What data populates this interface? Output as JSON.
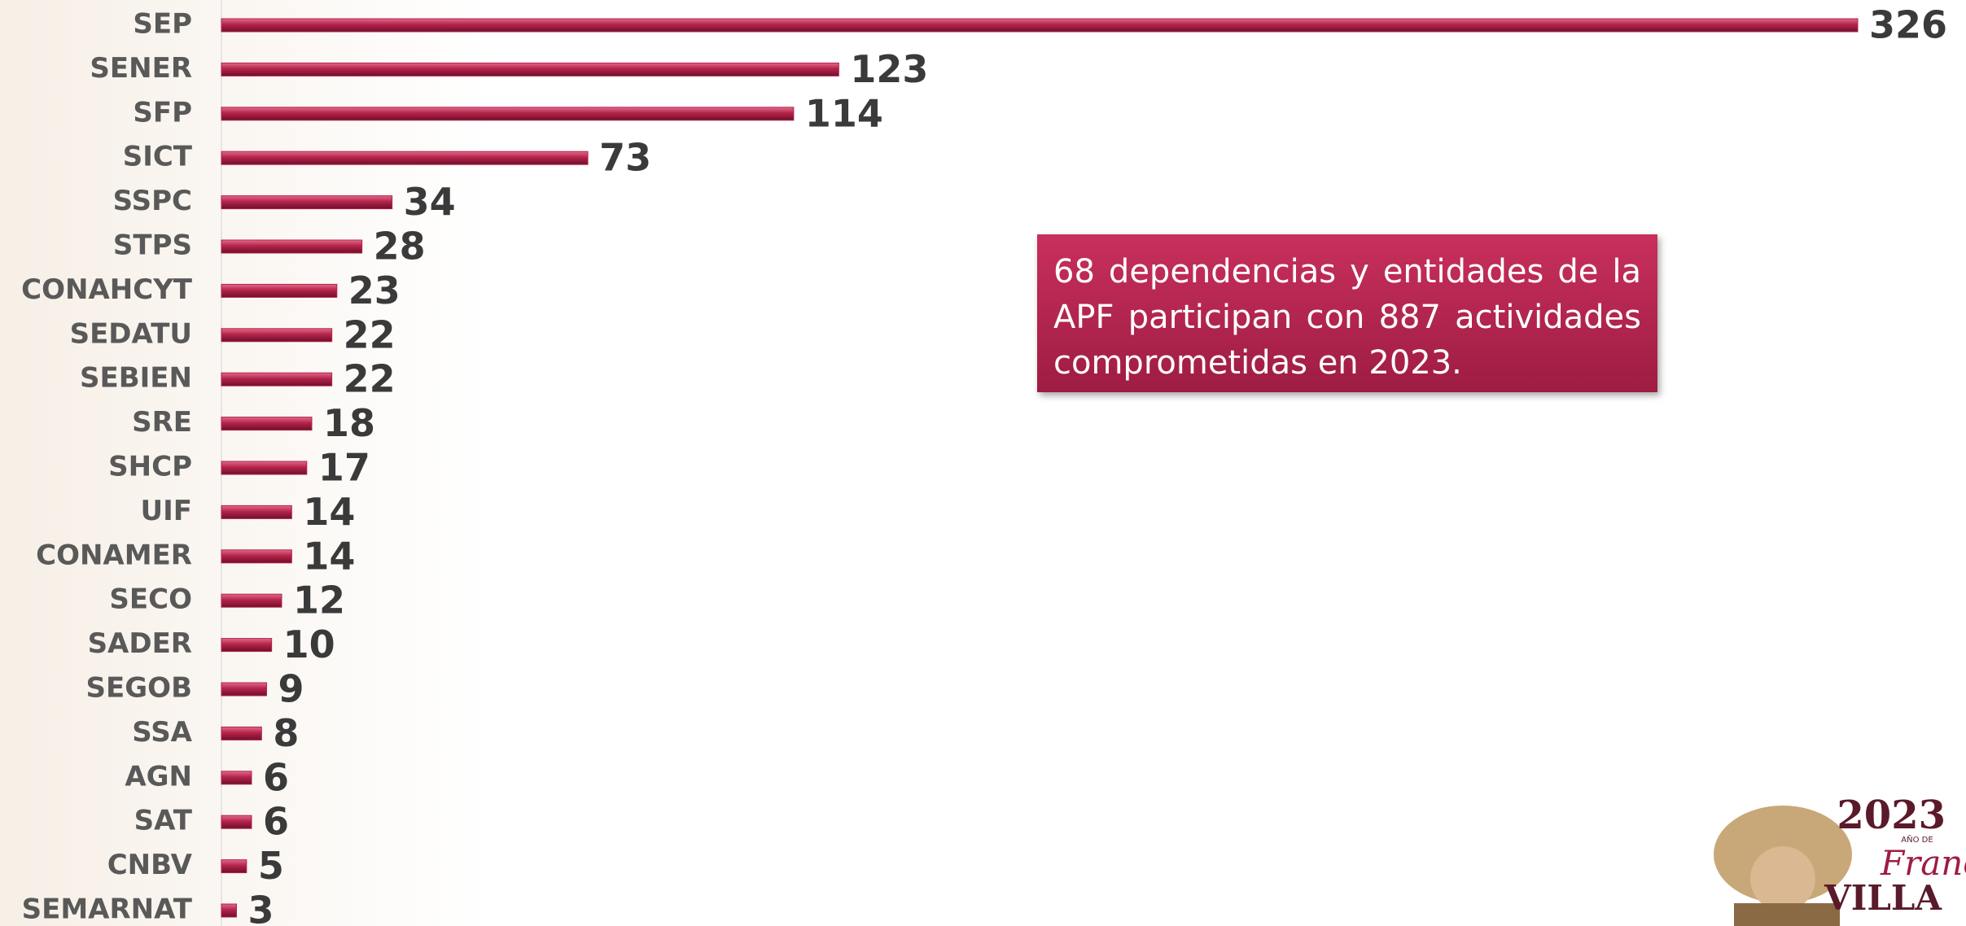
{
  "chart_data": {
    "type": "bar",
    "orientation": "horizontal",
    "categories": [
      "SEP",
      "SENER",
      "SFP",
      "SICT",
      "SSPC",
      "STPS",
      "CONAHCYT",
      "SEDATU",
      "SEBIEN",
      "SRE",
      "SHCP",
      "UIF",
      "CONAMER",
      "SECO",
      "SADER",
      "SEGOB",
      "SSA",
      "AGN",
      "SAT",
      "CNBV",
      "SEMARNAT"
    ],
    "values": [
      326,
      123,
      114,
      73,
      34,
      28,
      23,
      22,
      22,
      18,
      17,
      14,
      14,
      12,
      10,
      9,
      8,
      6,
      6,
      5,
      3
    ],
    "color": "#b5234a",
    "annotation": "68 dependencias y entidades de la APF participan con 887 actividades comprometidas en 2023."
  },
  "logo": {
    "year": "2023",
    "prefix": "AÑO DE",
    "name": "Francisco",
    "surname": "VILLA"
  }
}
